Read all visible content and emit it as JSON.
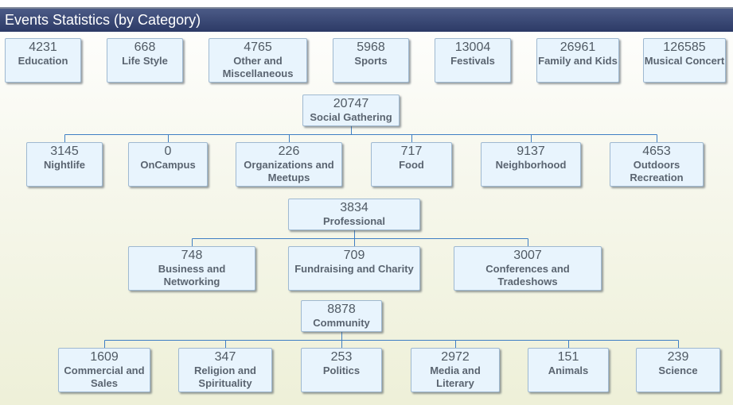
{
  "title": "Events Statistics (by Category)",
  "colors": {
    "title_bar": "#34426e",
    "box_fill": "#e8f4fd",
    "box_border": "#9fb9d1",
    "connector": "#3f7fc4",
    "label": "#5a6470"
  },
  "top": [
    {
      "value": "4231",
      "label": "Education"
    },
    {
      "value": "668",
      "label": "Life Style"
    },
    {
      "value": "4765",
      "label": "Other and Miscellaneous"
    },
    {
      "value": "5968",
      "label": "Sports"
    },
    {
      "value": "13004",
      "label": "Festivals"
    },
    {
      "value": "26961",
      "label": "Family and Kids"
    },
    {
      "value": "126585",
      "label": "Musical Concert"
    }
  ],
  "groups": [
    {
      "parent": {
        "value": "20747",
        "label": "Social Gathering"
      },
      "children": [
        {
          "value": "3145",
          "label": "Nightlife"
        },
        {
          "value": "0",
          "label": "OnCampus"
        },
        {
          "value": "226",
          "label": "Organizations and Meetups"
        },
        {
          "value": "717",
          "label": "Food"
        },
        {
          "value": "9137",
          "label": "Neighborhood"
        },
        {
          "value": "4653",
          "label": "Outdoors Recreation"
        }
      ]
    },
    {
      "parent": {
        "value": "3834",
        "label": "Professional"
      },
      "children": [
        {
          "value": "748",
          "label": "Business and Networking"
        },
        {
          "value": "709",
          "label": "Fundraising and Charity"
        },
        {
          "value": "3007",
          "label": "Conferences and Tradeshows"
        }
      ]
    },
    {
      "parent": {
        "value": "8878",
        "label": "Community"
      },
      "children": [
        {
          "value": "1609",
          "label": "Commercial and Sales"
        },
        {
          "value": "347",
          "label": "Religion and Spirituality"
        },
        {
          "value": "253",
          "label": "Politics"
        },
        {
          "value": "2972",
          "label": "Media and Literary"
        },
        {
          "value": "151",
          "label": "Animals"
        },
        {
          "value": "239",
          "label": "Science"
        }
      ]
    }
  ]
}
